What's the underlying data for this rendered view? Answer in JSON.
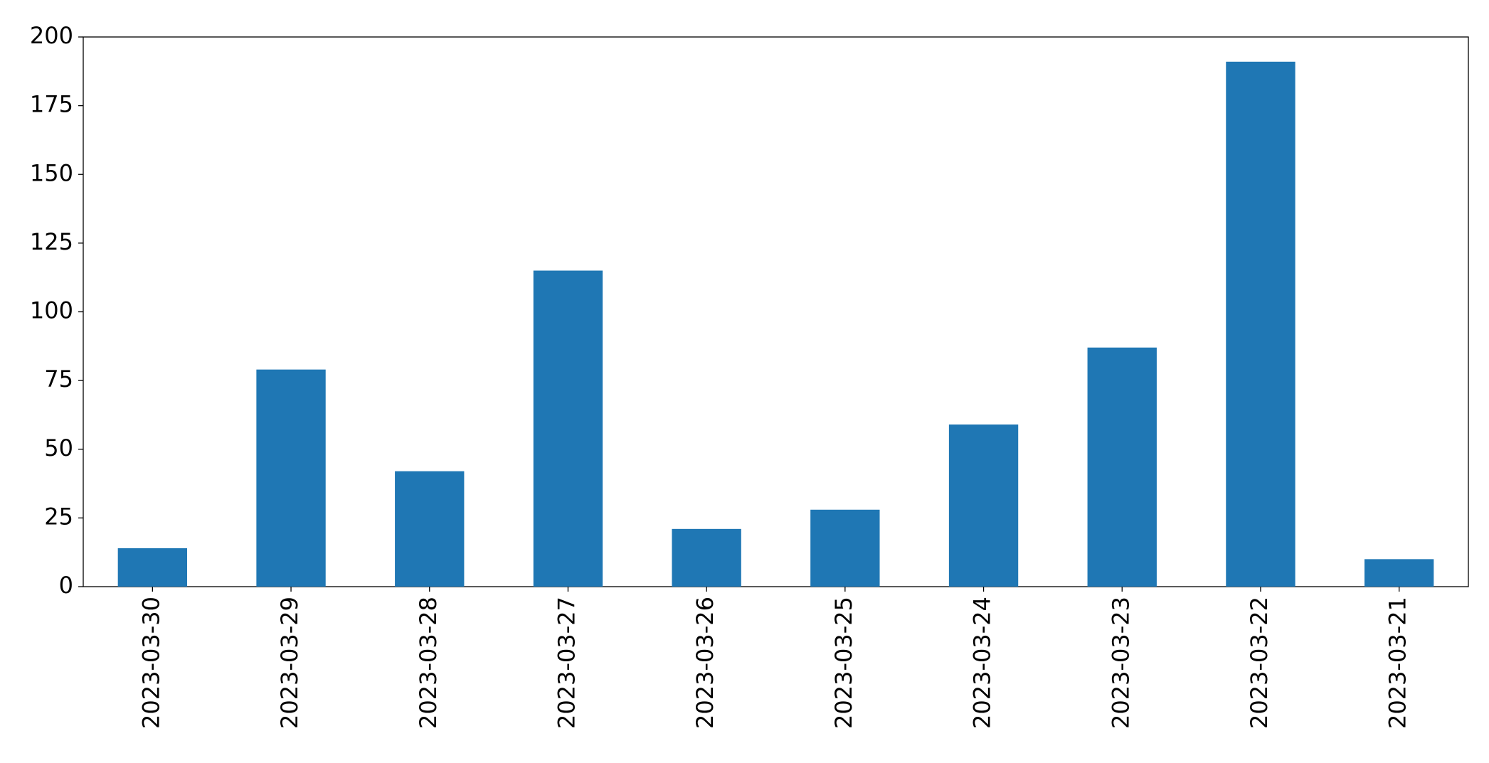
{
  "chart_data": {
    "type": "bar",
    "categories": [
      "2023-03-30",
      "2023-03-29",
      "2023-03-28",
      "2023-03-27",
      "2023-03-26",
      "2023-03-25",
      "2023-03-24",
      "2023-03-23",
      "2023-03-22",
      "2023-03-21"
    ],
    "values": [
      14,
      79,
      42,
      115,
      21,
      28,
      59,
      87,
      191,
      10
    ],
    "color": "#1f77b4",
    "ylim": [
      0,
      200
    ],
    "yticks": [
      0,
      25,
      50,
      75,
      100,
      125,
      150,
      175,
      200
    ],
    "grid": false
  }
}
